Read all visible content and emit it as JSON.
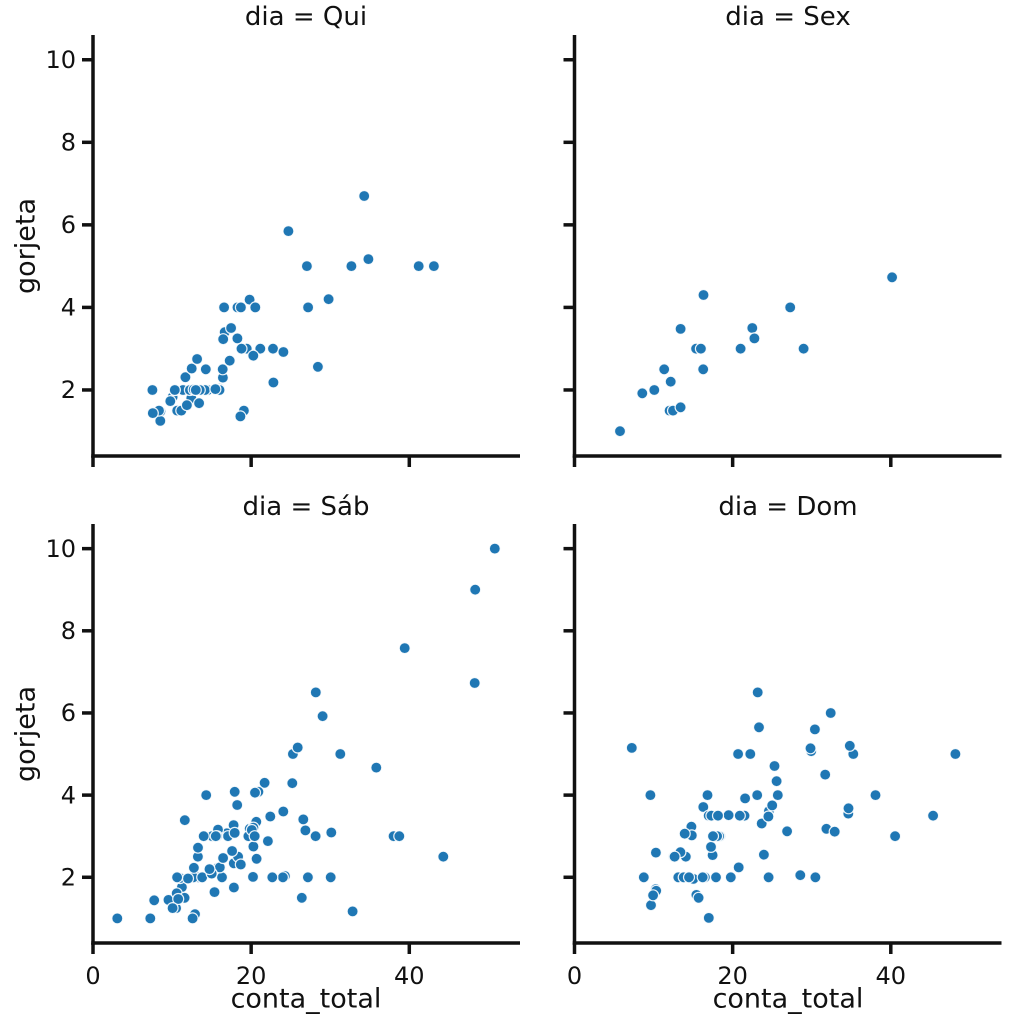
{
  "figure": {
    "background": "#ffffff",
    "text_color": "#111111"
  },
  "chart_data": {
    "type": "scatter",
    "facet_variable": "dia",
    "xlabel": "conta_total",
    "ylabel": "gorjeta",
    "x_ticks": [
      0,
      20,
      40
    ],
    "y_ticks": [
      2,
      4,
      6,
      8,
      10
    ],
    "xlim": [
      0,
      54
    ],
    "ylim": [
      0.4,
      10.6
    ],
    "grid": false,
    "legend": "none",
    "marker_color": "#1f77b4",
    "marker_edge_color": "#ffffff",
    "axis_color": "#111111",
    "facets": [
      {
        "title": "dia = Qui",
        "points": [
          [
            27.2,
            4.0
          ],
          [
            22.76,
            3.0
          ],
          [
            17.29,
            2.71
          ],
          [
            19.44,
            3.0
          ],
          [
            16.66,
            3.4
          ],
          [
            10.07,
            1.83
          ],
          [
            32.68,
            5.0
          ],
          [
            15.98,
            2.03
          ],
          [
            34.83,
            5.17
          ],
          [
            13.03,
            2.0
          ],
          [
            18.28,
            4.0
          ],
          [
            24.71,
            5.85
          ],
          [
            21.16,
            3.0
          ],
          [
            10.65,
            1.5
          ],
          [
            12.43,
            1.8
          ],
          [
            24.08,
            2.92
          ],
          [
            11.69,
            2.31
          ],
          [
            13.42,
            1.68
          ],
          [
            14.26,
            2.5
          ],
          [
            15.95,
            2.0
          ],
          [
            12.48,
            2.52
          ],
          [
            29.8,
            4.2
          ],
          [
            8.52,
            1.48
          ],
          [
            14.52,
            2.0
          ],
          [
            11.38,
            2.0
          ],
          [
            22.82,
            2.18
          ],
          [
            19.08,
            1.5
          ],
          [
            20.27,
            2.83
          ],
          [
            11.17,
            1.5
          ],
          [
            12.26,
            2.0
          ],
          [
            18.26,
            3.25
          ],
          [
            8.51,
            1.25
          ],
          [
            10.33,
            2.0
          ],
          [
            14.15,
            2.0
          ],
          [
            16.0,
            2.0
          ],
          [
            13.16,
            2.75
          ],
          [
            17.47,
            3.5
          ],
          [
            34.3,
            6.7
          ],
          [
            41.19,
            5.0
          ],
          [
            27.05,
            5.0
          ],
          [
            16.43,
            2.3
          ],
          [
            8.35,
            1.5
          ],
          [
            18.64,
            1.36
          ],
          [
            11.87,
            1.63
          ],
          [
            9.78,
            1.73
          ],
          [
            7.51,
            2.0
          ],
          [
            19.81,
            4.19
          ],
          [
            28.44,
            2.56
          ],
          [
            15.48,
            2.02
          ],
          [
            16.58,
            4.0
          ],
          [
            7.56,
            1.44
          ],
          [
            10.34,
            2.0
          ],
          [
            43.11,
            5.0
          ],
          [
            13.0,
            2.0
          ],
          [
            13.51,
            2.0
          ],
          [
            18.71,
            4.0
          ],
          [
            12.74,
            2.01
          ],
          [
            13.0,
            2.0
          ],
          [
            16.4,
            2.5
          ],
          [
            20.53,
            4.0
          ],
          [
            16.47,
            3.23
          ],
          [
            18.78,
            3.0
          ]
        ]
      },
      {
        "title": "dia = Sex",
        "points": [
          [
            28.97,
            3.0
          ],
          [
            22.49,
            3.5
          ],
          [
            5.75,
            1.0
          ],
          [
            16.32,
            4.3
          ],
          [
            22.75,
            3.25
          ],
          [
            40.17,
            4.73
          ],
          [
            27.28,
            4.0
          ],
          [
            12.03,
            1.5
          ],
          [
            21.01,
            3.0
          ],
          [
            12.46,
            1.5
          ],
          [
            11.35,
            2.5
          ],
          [
            15.38,
            3.0
          ],
          [
            12.16,
            2.2
          ],
          [
            13.42,
            3.48
          ],
          [
            8.58,
            1.92
          ],
          [
            15.98,
            3.0
          ],
          [
            13.42,
            1.58
          ],
          [
            16.27,
            2.5
          ],
          [
            10.09,
            2.0
          ]
        ]
      },
      {
        "title": "dia = Sáb",
        "points": [
          [
            20.65,
            3.35
          ],
          [
            17.92,
            4.08
          ],
          [
            20.29,
            2.75
          ],
          [
            15.77,
            2.23
          ],
          [
            39.42,
            7.58
          ],
          [
            19.82,
            3.18
          ],
          [
            17.81,
            2.34
          ],
          [
            13.37,
            2.0
          ],
          [
            12.69,
            2.0
          ],
          [
            21.7,
            4.3
          ],
          [
            19.65,
            3.0
          ],
          [
            9.55,
            1.45
          ],
          [
            18.35,
            2.5
          ],
          [
            15.06,
            3.0
          ],
          [
            20.69,
            2.45
          ],
          [
            17.78,
            3.27
          ],
          [
            24.06,
            3.6
          ],
          [
            16.31,
            2.0
          ],
          [
            16.93,
            3.07
          ],
          [
            18.69,
            2.31
          ],
          [
            31.27,
            5.0
          ],
          [
            16.04,
            2.24
          ],
          [
            38.01,
            3.0
          ],
          [
            26.41,
            1.5
          ],
          [
            11.24,
            1.76
          ],
          [
            48.27,
            6.73
          ],
          [
            20.29,
            3.21
          ],
          [
            13.81,
            2.0
          ],
          [
            11.02,
            1.98
          ],
          [
            18.29,
            3.76
          ],
          [
            17.59,
            2.64
          ],
          [
            20.08,
            3.15
          ],
          [
            16.45,
            2.47
          ],
          [
            3.07,
            1.0
          ],
          [
            20.23,
            2.01
          ],
          [
            15.01,
            2.09
          ],
          [
            12.02,
            1.97
          ],
          [
            17.07,
            3.0
          ],
          [
            26.86,
            3.14
          ],
          [
            25.28,
            5.0
          ],
          [
            14.73,
            2.2
          ],
          [
            10.51,
            1.25
          ],
          [
            17.92,
            3.08
          ],
          [
            44.3,
            2.5
          ],
          [
            22.42,
            3.48
          ],
          [
            20.92,
            4.08
          ],
          [
            15.36,
            1.64
          ],
          [
            20.49,
            4.06
          ],
          [
            25.21,
            4.29
          ],
          [
            18.24,
            3.76
          ],
          [
            14.31,
            4.0
          ],
          [
            14.0,
            3.0
          ],
          [
            7.25,
            1.0
          ],
          [
            10.59,
            1.61
          ],
          [
            10.63,
            2.0
          ],
          [
            50.81,
            10.0
          ],
          [
            15.81,
            3.16
          ],
          [
            26.59,
            3.41
          ],
          [
            38.73,
            3.0
          ],
          [
            24.27,
            2.03
          ],
          [
            12.76,
            2.23
          ],
          [
            30.06,
            2.0
          ],
          [
            25.89,
            5.16
          ],
          [
            48.33,
            9.0
          ],
          [
            13.27,
            2.5
          ],
          [
            28.17,
            6.5
          ],
          [
            12.9,
            1.1
          ],
          [
            28.15,
            3.0
          ],
          [
            11.59,
            1.5
          ],
          [
            7.74,
            1.44
          ],
          [
            30.14,
            3.09
          ],
          [
            20.45,
            3.0
          ],
          [
            13.28,
            2.72
          ],
          [
            22.12,
            2.88
          ],
          [
            24.01,
            2.0
          ],
          [
            15.69,
            3.0
          ],
          [
            11.61,
            3.39
          ],
          [
            10.77,
            1.47
          ],
          [
            15.53,
            3.0
          ],
          [
            10.07,
            1.25
          ],
          [
            12.6,
            1.0
          ],
          [
            32.83,
            1.17
          ],
          [
            35.83,
            4.67
          ],
          [
            29.03,
            5.92
          ],
          [
            27.18,
            2.0
          ],
          [
            22.67,
            2.0
          ],
          [
            17.82,
            1.75
          ]
        ]
      },
      {
        "title": "dia = Dom",
        "points": [
          [
            16.99,
            1.01
          ],
          [
            10.34,
            1.66
          ],
          [
            21.01,
            3.5
          ],
          [
            23.68,
            3.31
          ],
          [
            24.59,
            3.61
          ],
          [
            25.29,
            4.71
          ],
          [
            8.77,
            2.0
          ],
          [
            26.88,
            3.12
          ],
          [
            15.04,
            1.96
          ],
          [
            14.78,
            3.23
          ],
          [
            10.27,
            1.71
          ],
          [
            35.26,
            5.0
          ],
          [
            15.42,
            1.57
          ],
          [
            18.43,
            3.0
          ],
          [
            14.83,
            3.02
          ],
          [
            21.58,
            3.92
          ],
          [
            10.33,
            1.67
          ],
          [
            16.29,
            3.71
          ],
          [
            16.97,
            3.5
          ],
          [
            17.46,
            2.54
          ],
          [
            13.94,
            3.06
          ],
          [
            9.68,
            1.32
          ],
          [
            30.4,
            5.6
          ],
          [
            18.29,
            3.0
          ],
          [
            22.23,
            5.0
          ],
          [
            32.4,
            6.0
          ],
          [
            28.55,
            2.05
          ],
          [
            18.04,
            3.0
          ],
          [
            12.54,
            2.5
          ],
          [
            10.29,
            2.6
          ],
          [
            34.81,
            5.2
          ],
          [
            9.94,
            1.56
          ],
          [
            25.56,
            4.34
          ],
          [
            19.49,
            3.51
          ],
          [
            38.07,
            4.0
          ],
          [
            23.95,
            2.55
          ],
          [
            25.71,
            4.0
          ],
          [
            17.31,
            3.5
          ],
          [
            29.93,
            5.07
          ],
          [
            14.07,
            2.5
          ],
          [
            13.13,
            2.0
          ],
          [
            17.26,
            2.74
          ],
          [
            24.55,
            2.0
          ],
          [
            19.77,
            2.0
          ],
          [
            29.85,
            5.14
          ],
          [
            48.17,
            5.0
          ],
          [
            25.0,
            3.75
          ],
          [
            13.39,
            2.61
          ],
          [
            16.49,
            2.0
          ],
          [
            21.5,
            3.5
          ],
          [
            12.66,
            2.5
          ],
          [
            16.21,
            2.0
          ],
          [
            13.81,
            2.0
          ],
          [
            17.51,
            3.0
          ],
          [
            24.52,
            3.48
          ],
          [
            20.76,
            2.24
          ],
          [
            31.71,
            4.5
          ],
          [
            7.25,
            5.15
          ],
          [
            31.85,
            3.18
          ],
          [
            16.82,
            4.0
          ],
          [
            32.9,
            3.11
          ],
          [
            17.89,
            2.0
          ],
          [
            14.48,
            2.0
          ],
          [
            9.6,
            4.0
          ],
          [
            34.63,
            3.55
          ],
          [
            34.65,
            3.68
          ],
          [
            23.33,
            5.65
          ],
          [
            45.35,
            3.5
          ],
          [
            23.17,
            6.5
          ],
          [
            40.55,
            3.0
          ],
          [
            20.69,
            5.0
          ],
          [
            20.9,
            3.5
          ],
          [
            30.46,
            2.0
          ],
          [
            18.15,
            3.5
          ],
          [
            23.1,
            4.0
          ],
          [
            15.69,
            1.5
          ]
        ]
      }
    ]
  }
}
